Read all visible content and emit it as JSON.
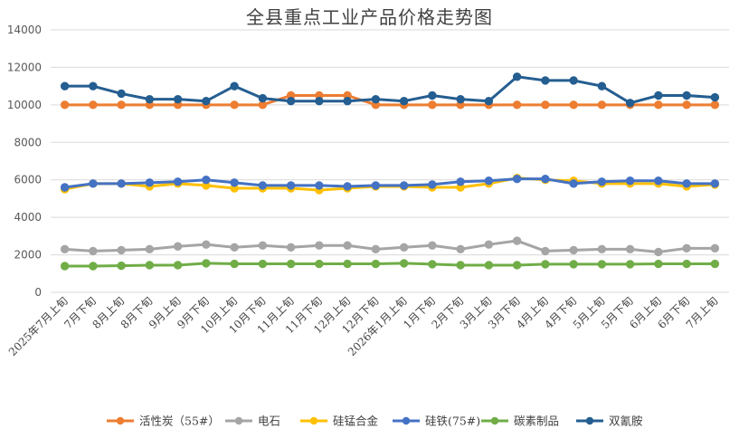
{
  "chart_data": {
    "type": "line",
    "title": "全县重点工业产品价格走势图",
    "xlabel": "",
    "ylabel": "",
    "ylim": [
      0,
      14000
    ],
    "yticks": [
      0,
      2000,
      4000,
      6000,
      8000,
      10000,
      12000,
      14000
    ],
    "grid": true,
    "legend_position": "bottom",
    "categories": [
      "2025年7月上旬",
      "7月下旬",
      "8月上旬",
      "8月下旬",
      "9月上旬",
      "9月下旬",
      "10月上旬",
      "10月下旬",
      "11月上旬",
      "11月下旬",
      "12月上旬",
      "12月下旬",
      "2026年1月上旬",
      "1月下旬",
      "2月下旬",
      "3月上旬",
      "3月下旬",
      "4月上旬",
      "4月下旬",
      "5月上旬",
      "5月下旬",
      "6月上旬",
      "6月下旬",
      "7月上旬"
    ],
    "series": [
      {
        "name": "活性炭（55#）",
        "color": "#ED7D31",
        "values": [
          10000,
          10000,
          10000,
          10000,
          10000,
          10000,
          10000,
          10000,
          10500,
          10500,
          10500,
          10000,
          10000,
          10000,
          10000,
          10000,
          10000,
          10000,
          10000,
          10000,
          10000,
          10000,
          10000,
          10000
        ]
      },
      {
        "name": "电石",
        "color": "#A5A5A5",
        "values": [
          2300,
          2200,
          2250,
          2300,
          2450,
          2550,
          2400,
          2500,
          2400,
          2500,
          2500,
          2300,
          2400,
          2500,
          2300,
          2550,
          2750,
          2200,
          2250,
          2300,
          2300,
          2150,
          2350,
          2350
        ]
      },
      {
        "name": "硅锰合金",
        "color": "#FFC000",
        "values": [
          5500,
          5800,
          5800,
          5650,
          5800,
          5700,
          5550,
          5550,
          5550,
          5450,
          5550,
          5650,
          5650,
          5600,
          5600,
          5800,
          6100,
          6000,
          5950,
          5800,
          5800,
          5800,
          5650,
          5750
        ]
      },
      {
        "name": "硅铁(75#)",
        "color": "#4472C4",
        "values": [
          5600,
          5800,
          5800,
          5850,
          5900,
          6000,
          5850,
          5700,
          5700,
          5700,
          5650,
          5700,
          5700,
          5750,
          5900,
          5950,
          6050,
          6050,
          5800,
          5900,
          5950,
          5950,
          5800,
          5800
        ]
      },
      {
        "name": "碳素制品",
        "color": "#70AD47",
        "values": [
          1400,
          1400,
          1420,
          1450,
          1450,
          1550,
          1520,
          1520,
          1520,
          1520,
          1520,
          1520,
          1550,
          1500,
          1450,
          1450,
          1450,
          1500,
          1500,
          1500,
          1500,
          1520,
          1520,
          1520
        ]
      },
      {
        "name": "双氰胺",
        "color": "#255E91",
        "values": [
          11000,
          11000,
          10600,
          10300,
          10300,
          10200,
          11000,
          10350,
          10200,
          10200,
          10200,
          10300,
          10200,
          10500,
          10300,
          10200,
          11500,
          11300,
          11300,
          11000,
          10100,
          10500,
          10500,
          10400
        ]
      }
    ]
  }
}
